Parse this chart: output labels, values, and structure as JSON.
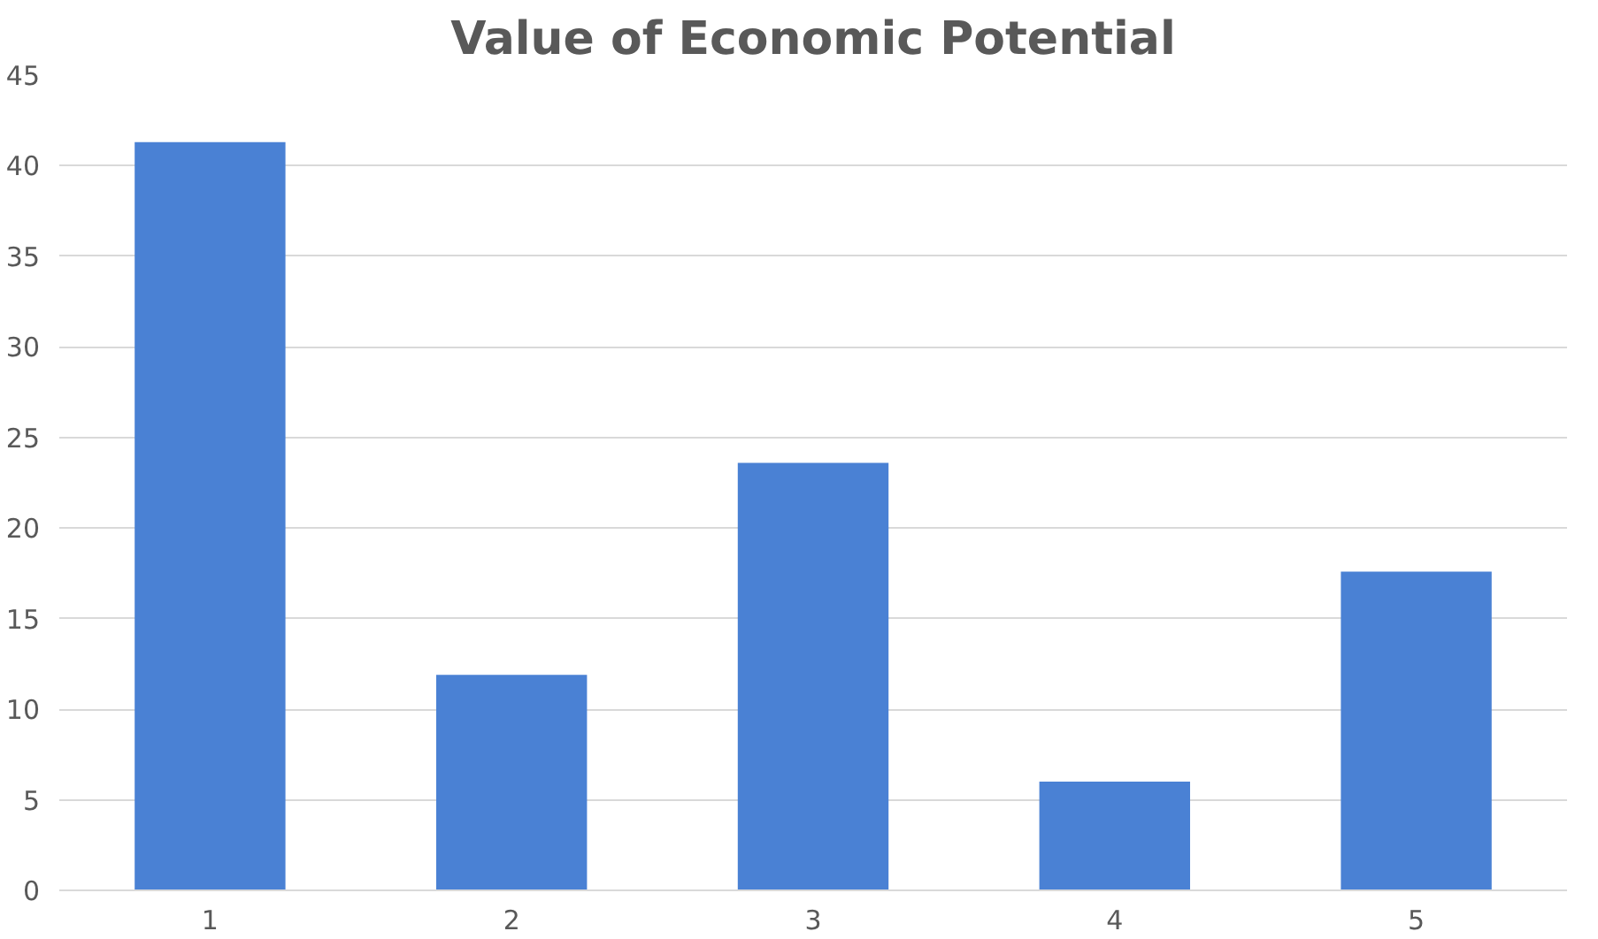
{
  "chart_data": {
    "type": "bar",
    "title": "Value of Economic Potential",
    "categories": [
      "1",
      "2",
      "3",
      "4",
      "5"
    ],
    "values": [
      41.3,
      11.9,
      23.6,
      6,
      17.6
    ],
    "color": "#4a81d4",
    "ylim": [
      0,
      45
    ],
    "yticks": [
      0,
      5,
      10,
      15,
      20,
      25,
      30,
      35,
      40,
      45
    ],
    "grid": "y"
  }
}
